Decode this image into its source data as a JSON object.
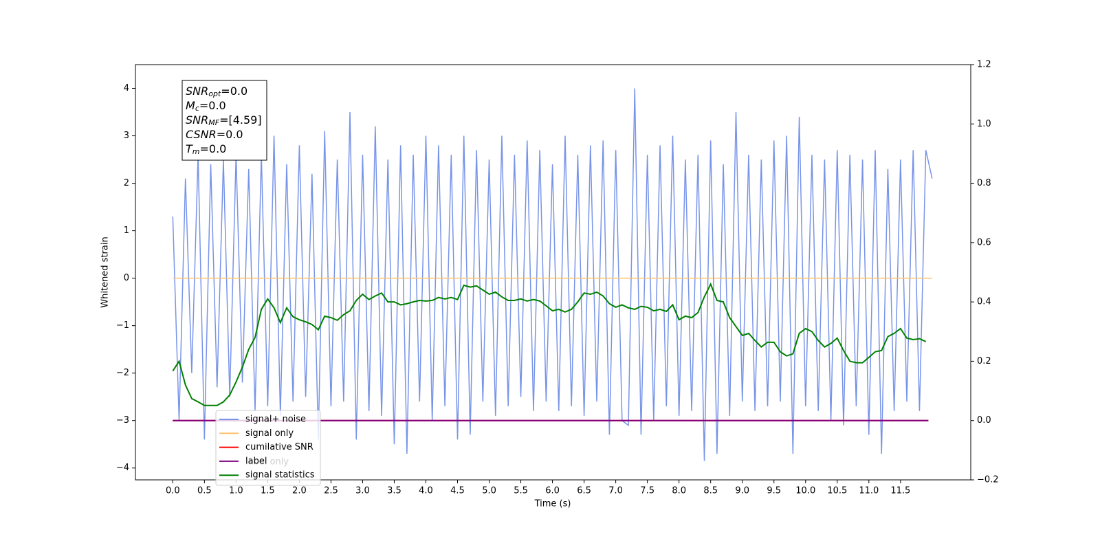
{
  "chart_data": {
    "type": "line",
    "xlabel": "Time (s)",
    "ylabel": "Whitened strain",
    "xlim": [
      -0.59,
      12.61
    ],
    "ylim": [
      -4.25,
      4.5
    ],
    "y2lim": [
      -0.2,
      1.2
    ],
    "xticks": [
      {
        "value": 0,
        "label": "0.0"
      },
      0.5,
      {
        "value": 1,
        "label": "1.0"
      },
      1.5,
      {
        "value": 2,
        "label": "2.0"
      },
      2.5,
      {
        "value": 3,
        "label": "3.0"
      },
      3.5,
      {
        "value": 4,
        "label": "4.0"
      },
      4.5,
      {
        "value": 5,
        "label": "5.0"
      },
      5.5,
      {
        "value": 6,
        "label": "6.0"
      },
      6.5,
      {
        "value": 7,
        "label": "7.0"
      },
      7.5,
      {
        "value": 8,
        "label": "8.0"
      },
      8.5,
      {
        "value": 9,
        "label": "9.0"
      },
      9.5,
      {
        "value": 10,
        "label": "10.0"
      },
      10.5,
      {
        "value": 11,
        "label": "11.0"
      },
      11.5
    ],
    "yticks": [
      {
        "value": -4,
        "label": "−4"
      },
      {
        "value": -3,
        "label": "−3"
      },
      {
        "value": -2,
        "label": "−2"
      },
      {
        "value": -1,
        "label": "−1"
      },
      0,
      1,
      2,
      3,
      4
    ],
    "y2ticks": [
      {
        "value": -0.2,
        "label": "−0.2"
      },
      {
        "value": 0,
        "label": "0.0"
      },
      0.2,
      0.4,
      0.6,
      0.8,
      {
        "value": 1,
        "label": "1.0"
      },
      1.2
    ],
    "legend_loc": "lower left",
    "x": [
      0.0,
      0.1,
      0.2,
      0.3,
      0.4,
      0.5,
      0.6,
      0.7,
      0.8,
      0.9,
      1.0,
      1.1,
      1.2,
      1.3,
      1.4,
      1.5,
      1.6,
      1.7,
      1.8,
      1.9,
      2.0,
      2.1,
      2.2,
      2.3,
      2.4,
      2.5,
      2.6,
      2.7,
      2.8,
      2.9,
      3.0,
      3.1,
      3.2,
      3.3,
      3.4,
      3.5,
      3.6,
      3.7,
      3.8,
      3.9,
      4.0,
      4.1,
      4.2,
      4.3,
      4.4,
      4.5,
      4.6,
      4.7,
      4.8,
      4.9,
      5.0,
      5.1,
      5.2,
      5.3,
      5.4,
      5.5,
      5.6,
      5.7,
      5.8,
      5.9,
      6.0,
      6.1,
      6.2,
      6.3,
      6.4,
      6.5,
      6.6,
      6.7,
      6.8,
      6.9,
      7.0,
      7.1,
      7.2,
      7.3,
      7.4,
      7.5,
      7.6,
      7.7,
      7.8,
      7.9,
      8.0,
      8.1,
      8.2,
      8.3,
      8.4,
      8.5,
      8.6,
      8.7,
      8.8,
      8.9,
      9.0,
      9.1,
      9.2,
      9.3,
      9.4,
      9.5,
      9.6,
      9.7,
      9.8,
      9.9,
      10.0,
      10.1,
      10.2,
      10.3,
      10.4,
      10.5,
      10.6,
      10.7,
      10.8,
      10.9,
      11.0,
      11.1,
      11.2,
      11.3,
      11.4,
      11.5,
      11.6,
      11.7,
      11.8,
      11.9,
      12.0
    ],
    "series": [
      {
        "name": "signal+ noise",
        "color": "#7894e8",
        "axis": "y",
        "values": [
          1.3,
          -3.0,
          2.1,
          -2.0,
          2.6,
          -3.4,
          2.4,
          -2.3,
          2.5,
          -2.5,
          2.6,
          -2.2,
          2.3,
          -2.8,
          2.6,
          -2.7,
          3.0,
          -2.9,
          2.4,
          -2.6,
          2.8,
          -2.5,
          2.2,
          -3.4,
          3.1,
          -2.7,
          2.5,
          -2.6,
          3.5,
          -3.4,
          2.6,
          -2.8,
          3.2,
          -2.9,
          2.5,
          -3.5,
          2.8,
          -3.7,
          2.6,
          -2.6,
          3.0,
          -3.0,
          2.8,
          -2.7,
          2.6,
          -3.4,
          3.0,
          -3.3,
          2.7,
          -2.6,
          2.5,
          -2.9,
          3.0,
          -2.7,
          2.6,
          -2.5,
          2.9,
          -2.8,
          2.7,
          -2.6,
          2.4,
          -2.8,
          3.0,
          -2.7,
          2.6,
          -2.9,
          2.8,
          -2.6,
          2.9,
          -3.3,
          2.7,
          -3.0,
          -3.1,
          4.0,
          -3.3,
          2.6,
          -3.0,
          2.8,
          -2.7,
          3.0,
          -2.9,
          2.5,
          -2.8,
          2.6,
          -3.85,
          2.9,
          -3.7,
          2.4,
          -2.9,
          3.5,
          -2.6,
          2.6,
          -2.8,
          2.5,
          -2.7,
          2.9,
          -2.6,
          3.0,
          -3.7,
          3.4,
          -2.7,
          2.6,
          -2.8,
          2.5,
          -3.0,
          2.7,
          -3.1,
          2.6,
          -2.7,
          2.5,
          -3.3,
          2.7,
          -3.7,
          2.3,
          -2.8,
          2.5,
          -2.6,
          2.7,
          -2.8,
          2.7,
          2.1
        ]
      },
      {
        "name": "signal only",
        "color": "#ffc36e",
        "axis": "y",
        "x": [
          0.0,
          12.0
        ],
        "values": [
          0,
          0
        ]
      },
      {
        "name": "cumilative SNR",
        "color": "#ff0000",
        "axis": "y2",
        "x": [
          0.0,
          11.94
        ],
        "values": [
          0,
          0
        ]
      },
      {
        "name": "label",
        "color": "#800080",
        "axis": "y2",
        "x": [
          0.0,
          11.94
        ],
        "values": [
          0,
          0
        ]
      },
      {
        "name": "signal statistics",
        "color": "#008000",
        "axis": "y2",
        "values": [
          0.167,
          0.2,
          0.12,
          0.074,
          0.063,
          0.051,
          0.051,
          0.051,
          0.063,
          0.086,
          0.13,
          0.18,
          0.24,
          0.28,
          0.375,
          0.41,
          0.38,
          0.33,
          0.38,
          0.35,
          0.34,
          0.333,
          0.324,
          0.306,
          0.352,
          0.347,
          0.338,
          0.357,
          0.37,
          0.405,
          0.426,
          0.408,
          0.42,
          0.43,
          0.4,
          0.4,
          0.39,
          0.394,
          0.4,
          0.405,
          0.403,
          0.405,
          0.415,
          0.41,
          0.415,
          0.408,
          0.456,
          0.45,
          0.454,
          0.44,
          0.426,
          0.433,
          0.417,
          0.405,
          0.405,
          0.41,
          0.403,
          0.408,
          0.403,
          0.387,
          0.37,
          0.375,
          0.366,
          0.375,
          0.4,
          0.43,
          0.426,
          0.433,
          0.42,
          0.394,
          0.382,
          0.39,
          0.38,
          0.375,
          0.385,
          0.382,
          0.37,
          0.375,
          0.368,
          0.39,
          0.34,
          0.352,
          0.347,
          0.364,
          0.417,
          0.46,
          0.405,
          0.4,
          0.347,
          0.317,
          0.287,
          0.294,
          0.27,
          0.248,
          0.264,
          0.264,
          0.232,
          0.218,
          0.225,
          0.294,
          0.31,
          0.3,
          0.27,
          0.248,
          0.26,
          0.278,
          0.236,
          0.2,
          0.195,
          0.195,
          0.213,
          0.232,
          0.236,
          0.283,
          0.294,
          0.31,
          0.278,
          0.273,
          0.276,
          0.266,
          null
        ]
      }
    ],
    "hidden_text": "label only",
    "annotation_box": [
      {
        "symbol": "SNR",
        "sub": "opt",
        "value": "=0.0"
      },
      {
        "symbol": "M",
        "sub": "c",
        "value": "=0.0"
      },
      {
        "symbol": "SNR",
        "sub": "MF",
        "value": "=[4.59]"
      },
      {
        "symbol": "CSNR",
        "value": "=0.0"
      },
      {
        "symbol": "T",
        "sub": "m",
        "value": "=0.0"
      }
    ]
  }
}
